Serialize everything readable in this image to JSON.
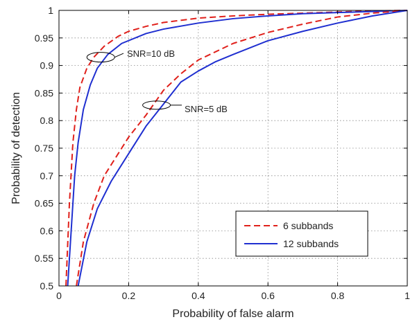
{
  "chart_data": {
    "type": "line",
    "title": "",
    "xlabel": "Probability of false alarm",
    "ylabel": "Probability of detection",
    "xlim": [
      0,
      1
    ],
    "ylim": [
      0.5,
      1
    ],
    "x_ticks": [
      0,
      0.2,
      0.4,
      0.6,
      0.8,
      1
    ],
    "x_tick_labels": [
      "0",
      "0.2",
      "0.4",
      "0.6",
      "0.8",
      "1"
    ],
    "y_ticks": [
      0.5,
      0.55,
      0.6,
      0.65,
      0.7,
      0.75,
      0.8,
      0.85,
      0.9,
      0.95,
      1
    ],
    "y_tick_labels": [
      "0.5",
      "0.55",
      "0.6",
      "0.65",
      "0.7",
      "0.75",
      "0.8",
      "0.85",
      "0.9",
      "0.95",
      "1"
    ],
    "grid": true,
    "legend_position": "bottom-right",
    "legend": [
      {
        "label": "6 subbands",
        "color": "#e0201b",
        "style": "dashed"
      },
      {
        "label": "12 subbands",
        "color": "#1f2fd0",
        "style": "solid"
      }
    ],
    "annotations": [
      {
        "text": "SNR=10 dB",
        "x": 0.12,
        "y": 0.915
      },
      {
        "text": "SNR=5 dB",
        "x": 0.28,
        "y": 0.828
      }
    ],
    "series": [
      {
        "group": "SNR=10 dB",
        "color": "#e0201b",
        "style": "dashed",
        "x": [
          0.02,
          0.03,
          0.04,
          0.05,
          0.06,
          0.08,
          0.1,
          0.13,
          0.17,
          0.2,
          0.25,
          0.3,
          0.4,
          0.5,
          0.6,
          0.7,
          0.8,
          0.9,
          1.0
        ],
        "y": [
          0.5,
          0.65,
          0.76,
          0.82,
          0.86,
          0.895,
          0.915,
          0.935,
          0.953,
          0.962,
          0.971,
          0.978,
          0.986,
          0.99,
          0.993,
          0.995,
          0.997,
          0.999,
          1.0
        ]
      },
      {
        "group": "SNR=10 dB",
        "color": "#1f2fd0",
        "style": "solid",
        "x": [
          0.025,
          0.035,
          0.045,
          0.055,
          0.07,
          0.09,
          0.11,
          0.14,
          0.18,
          0.25,
          0.3,
          0.4,
          0.5,
          0.6,
          0.7,
          0.8,
          0.9,
          1.0
        ],
        "y": [
          0.5,
          0.6,
          0.7,
          0.76,
          0.82,
          0.865,
          0.895,
          0.92,
          0.94,
          0.958,
          0.966,
          0.977,
          0.985,
          0.99,
          0.994,
          0.996,
          0.998,
          1.0
        ]
      },
      {
        "group": "SNR=5 dB",
        "color": "#e0201b",
        "style": "dashed",
        "x": [
          0.05,
          0.07,
          0.1,
          0.13,
          0.17,
          0.2,
          0.25,
          0.3,
          0.35,
          0.4,
          0.45,
          0.5,
          0.6,
          0.7,
          0.8,
          0.9,
          1.0
        ],
        "y": [
          0.5,
          0.58,
          0.65,
          0.7,
          0.74,
          0.77,
          0.81,
          0.855,
          0.885,
          0.91,
          0.925,
          0.94,
          0.96,
          0.975,
          0.988,
          0.995,
          1.0
        ]
      },
      {
        "group": "SNR=5 dB",
        "color": "#1f2fd0",
        "style": "solid",
        "x": [
          0.055,
          0.08,
          0.11,
          0.15,
          0.2,
          0.25,
          0.3,
          0.35,
          0.4,
          0.45,
          0.5,
          0.6,
          0.7,
          0.8,
          0.9,
          1.0
        ],
        "y": [
          0.5,
          0.58,
          0.64,
          0.69,
          0.74,
          0.79,
          0.83,
          0.87,
          0.89,
          0.907,
          0.92,
          0.945,
          0.962,
          0.977,
          0.99,
          1.0
        ]
      }
    ]
  }
}
